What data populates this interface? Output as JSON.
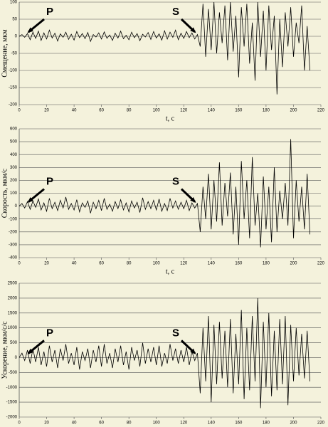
{
  "chart_data": [
    {
      "type": "line",
      "ylabel": "Смещение, мкм",
      "xlabel": "t, c",
      "color": "#000000",
      "grid": true,
      "xlim": [
        0,
        220
      ],
      "xticks": [
        0,
        20,
        40,
        60,
        80,
        100,
        120,
        140,
        160,
        180,
        200,
        220
      ],
      "ylim": [
        -200,
        100
      ],
      "yticks": [
        -200,
        -150,
        -100,
        -50,
        0,
        50,
        100
      ],
      "annotations": [
        "P",
        "S"
      ],
      "x": [
        0,
        2,
        4,
        6,
        8,
        10,
        12,
        14,
        16,
        18,
        20,
        22,
        24,
        26,
        28,
        30,
        32,
        34,
        36,
        38,
        40,
        42,
        44,
        46,
        48,
        50,
        52,
        54,
        56,
        58,
        60,
        62,
        64,
        66,
        68,
        70,
        72,
        74,
        76,
        78,
        80,
        82,
        84,
        86,
        88,
        90,
        92,
        94,
        96,
        98,
        100,
        102,
        104,
        106,
        108,
        110,
        112,
        114,
        116,
        118,
        120,
        122,
        124,
        126,
        128,
        130,
        132,
        134,
        136,
        138,
        140,
        142,
        144,
        146,
        148,
        150,
        152,
        154,
        156,
        158,
        160,
        162,
        164,
        166,
        168,
        170,
        172,
        174,
        176,
        178,
        180,
        182,
        184,
        186,
        188,
        190,
        192,
        194,
        196,
        198,
        200,
        202,
        204,
        206,
        208,
        210,
        212
      ],
      "values": [
        0,
        5,
        -3,
        8,
        -10,
        12,
        -6,
        15,
        -12,
        10,
        -8,
        18,
        -5,
        9,
        -14,
        7,
        -3,
        12,
        -9,
        6,
        -11,
        14,
        -4,
        8,
        -7,
        11,
        -15,
        5,
        -2,
        10,
        -8,
        13,
        -6,
        4,
        -12,
        9,
        -5,
        15,
        -7,
        3,
        -10,
        12,
        -4,
        8,
        -13,
        6,
        -2,
        11,
        -9,
        14,
        -5,
        7,
        -11,
        16,
        -8,
        12,
        -3,
        18,
        -10,
        9,
        -6,
        14,
        -4,
        10,
        -8,
        5,
        -30,
        95,
        -60,
        80,
        -40,
        100,
        -50,
        70,
        -20,
        90,
        -70,
        100,
        -45,
        60,
        -120,
        85,
        -30,
        95,
        -80,
        40,
        -130,
        100,
        -60,
        75,
        -100,
        90,
        -40,
        60,
        -170,
        50,
        -90,
        70,
        -30,
        85,
        -60,
        40,
        -20,
        90,
        -100,
        30,
        -100
      ]
    },
    {
      "type": "line",
      "ylabel": "Скорость, мкм/с",
      "xlabel": "t, c",
      "color": "#000000",
      "grid": true,
      "xlim": [
        0,
        220
      ],
      "xticks": [
        0,
        20,
        40,
        60,
        80,
        100,
        120,
        140,
        160,
        180,
        200,
        220
      ],
      "ylim": [
        -400,
        600
      ],
      "yticks": [
        -400,
        -300,
        -200,
        -100,
        0,
        100,
        200,
        300,
        400,
        500,
        600
      ],
      "annotations": [
        "P",
        "S"
      ],
      "x": [
        0,
        2,
        4,
        6,
        8,
        10,
        12,
        14,
        16,
        18,
        20,
        22,
        24,
        26,
        28,
        30,
        32,
        34,
        36,
        38,
        40,
        42,
        44,
        46,
        48,
        50,
        52,
        54,
        56,
        58,
        60,
        62,
        64,
        66,
        68,
        70,
        72,
        74,
        76,
        78,
        80,
        82,
        84,
        86,
        88,
        90,
        92,
        94,
        96,
        98,
        100,
        102,
        104,
        106,
        108,
        110,
        112,
        114,
        116,
        118,
        120,
        122,
        124,
        126,
        128,
        130,
        132,
        134,
        136,
        138,
        140,
        142,
        144,
        146,
        148,
        150,
        152,
        154,
        156,
        158,
        160,
        162,
        164,
        166,
        168,
        170,
        172,
        174,
        176,
        178,
        180,
        182,
        184,
        186,
        188,
        190,
        192,
        194,
        196,
        198,
        200,
        202,
        204,
        206,
        208,
        210,
        212
      ],
      "values": [
        0,
        20,
        -15,
        35,
        -25,
        40,
        -10,
        55,
        -30,
        25,
        -40,
        60,
        -20,
        30,
        -35,
        45,
        -15,
        70,
        -25,
        20,
        -30,
        50,
        -45,
        25,
        -10,
        40,
        -55,
        30,
        -20,
        45,
        -35,
        60,
        -25,
        15,
        -40,
        35,
        -20,
        50,
        -30,
        25,
        -45,
        40,
        -15,
        30,
        -50,
        65,
        -25,
        35,
        -20,
        45,
        -30,
        55,
        -40,
        20,
        -35,
        60,
        -15,
        40,
        -25,
        30,
        -20,
        45,
        -35,
        25,
        -15,
        20,
        -200,
        150,
        -100,
        250,
        -180,
        200,
        -120,
        340,
        -150,
        180,
        -80,
        260,
        -220,
        150,
        -300,
        350,
        -100,
        200,
        -250,
        380,
        -150,
        100,
        -320,
        230,
        -180,
        150,
        -280,
        300,
        -200,
        120,
        -100,
        180,
        -150,
        520,
        -250,
        200,
        -120,
        150,
        -180,
        250,
        -220
      ]
    },
    {
      "type": "line",
      "ylabel": "Ускорение, мкм/с/с",
      "color": "#000000",
      "grid": true,
      "xlim": [
        0,
        220
      ],
      "xticks": [
        0,
        20,
        40,
        60,
        80,
        100,
        120,
        140,
        160,
        180,
        200,
        220
      ],
      "ylim": [
        -2000,
        2500
      ],
      "yticks": [
        -2000,
        -1500,
        -1000,
        -500,
        0,
        500,
        1000,
        1500,
        2000,
        2500
      ],
      "annotations": [
        "P",
        "S"
      ],
      "x": [
        0,
        2,
        4,
        6,
        8,
        10,
        12,
        14,
        16,
        18,
        20,
        22,
        24,
        26,
        28,
        30,
        32,
        34,
        36,
        38,
        40,
        42,
        44,
        46,
        48,
        50,
        52,
        54,
        56,
        58,
        60,
        62,
        64,
        66,
        68,
        70,
        72,
        74,
        76,
        78,
        80,
        82,
        84,
        86,
        88,
        90,
        92,
        94,
        96,
        98,
        100,
        102,
        104,
        106,
        108,
        110,
        112,
        114,
        116,
        118,
        120,
        122,
        124,
        126,
        128,
        130,
        132,
        134,
        136,
        138,
        140,
        142,
        144,
        146,
        148,
        150,
        152,
        154,
        156,
        158,
        160,
        162,
        164,
        166,
        168,
        170,
        172,
        174,
        176,
        178,
        180,
        182,
        184,
        186,
        188,
        190,
        192,
        194,
        196,
        198,
        200,
        202,
        204,
        206,
        208,
        210,
        212
      ],
      "values": [
        0,
        150,
        -100,
        250,
        -200,
        300,
        -150,
        350,
        -250,
        200,
        -300,
        400,
        -150,
        250,
        -350,
        300,
        -100,
        450,
        -200,
        150,
        -250,
        350,
        -400,
        200,
        -100,
        300,
        -350,
        250,
        -150,
        400,
        -300,
        450,
        -200,
        150,
        -350,
        300,
        -150,
        400,
        -250,
        200,
        -400,
        350,
        -100,
        250,
        -300,
        500,
        -200,
        300,
        -150,
        350,
        -250,
        400,
        -300,
        150,
        -200,
        450,
        -100,
        300,
        -200,
        250,
        -150,
        350,
        -250,
        200,
        -100,
        150,
        -1200,
        1000,
        -800,
        1400,
        -1500,
        1100,
        -900,
        1200,
        -700,
        900,
        -1000,
        1300,
        -1200,
        800,
        -900,
        1600,
        -1400,
        1000,
        -1100,
        1400,
        -800,
        2000,
        -1700,
        1200,
        -1000,
        1500,
        -1300,
        900,
        -1100,
        1300,
        -900,
        1400,
        -1600,
        1100,
        -800,
        1000,
        -600,
        800,
        -700,
        900,
        -800
      ]
    }
  ]
}
